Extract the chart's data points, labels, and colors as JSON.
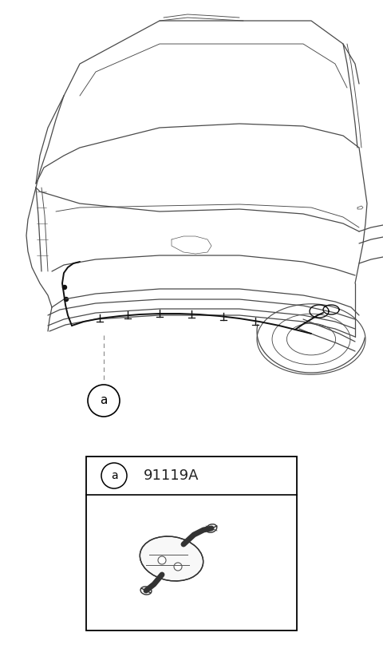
{
  "bg_color": "#ffffff",
  "lc": "#4a4a4a",
  "lc_dark": "#222222",
  "lw_body": 0.9,
  "lw_detail": 0.65,
  "figure_width": 4.8,
  "figure_height": 8.42,
  "dpi": 100,
  "part_number": "91119A",
  "label_text": "a"
}
